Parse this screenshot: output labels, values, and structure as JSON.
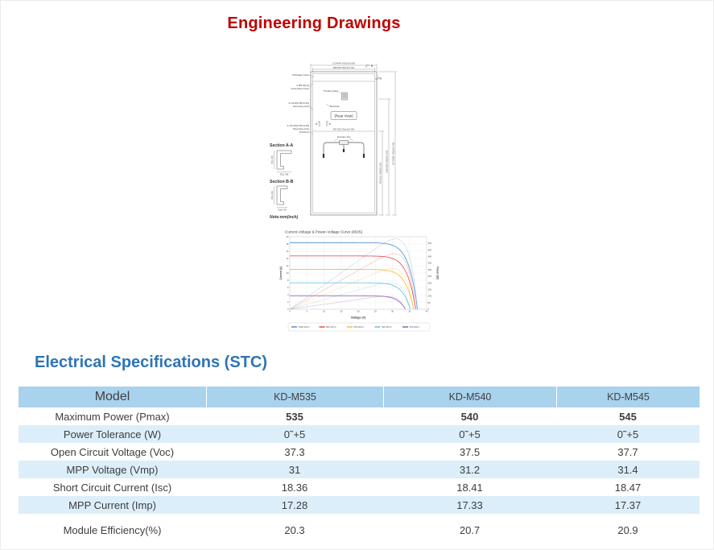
{
  "page": {
    "title": "Engineering Drawings",
    "accent_red": "#c00000",
    "accent_blue": "#2e74b5"
  },
  "drawing": {
    "labels": {
      "drainage": "Drainage holes",
      "grounding_1": "4-Φ5.0(0.2)",
      "grounding_2": "Grounding holes",
      "mounting_1": "4-14×9(0.55×0.35)",
      "mounting_2": "Mounting slots",
      "tracker_1": "4-15×10(0.59×0.39)",
      "tracker_2": "Mounting slots",
      "tracker_3": "(Tracker)",
      "product_label": "Product label",
      "barcode": "Barcode",
      "rear_view": "(Rear View)",
      "junction_box": "Junction box",
      "section_a": "Section A-A",
      "section_b": "Section B-B",
      "note": "Note:mm(inch)",
      "marker_a": "A",
      "marker_b": "B"
    },
    "dimensions": {
      "top_outer": "1134(44.65)±2(0.08)",
      "top_inner": "980(38.58)±1(0.04)",
      "width_mid": "997(39.25)±1(0.04)",
      "right_inner": "400(15.75)±5(0.20)",
      "right_mid": "1360(53.54)±5(0.20)",
      "right_outer": "2279(89.72)±2(0.08)",
      "section_a_h": "35(1.38)",
      "section_a_w": "35(1.38)",
      "section_b_h": "35(1.38)",
      "section_b_w": "20(0.79)"
    }
  },
  "chart_data": {
    "type": "line",
    "title": "Current-Voltage & Power-Voltage Curve (450S)",
    "xlabel": "Voltage (V)",
    "ylabel_left": "Current (A)",
    "ylabel_right": "Power (W)",
    "xlim": [
      0,
      40
    ],
    "xtick_step": 5,
    "ylim_left": [
      0,
      20
    ],
    "ytick_step_left": 2,
    "ylim_right": [
      0,
      550
    ],
    "ytick_step_right": 50,
    "grid": true,
    "legend_position": "bottom",
    "series": [
      {
        "name": "1000 W/m²",
        "color": "#5b9bd5",
        "isc": 18.36,
        "imp": 17.28,
        "vmp": 31.0,
        "voc": 37.3,
        "pmax": 535
      },
      {
        "name": "800 W/m²",
        "color": "#e05a5a",
        "isc": 14.7,
        "imp": 13.8,
        "vmp": 30.6,
        "voc": 36.8,
        "pmax": 428
      },
      {
        "name": "600 W/m²",
        "color": "#f5c142",
        "isc": 11.0,
        "imp": 10.35,
        "vmp": 30.1,
        "voc": 36.2,
        "pmax": 318
      },
      {
        "name": "400 W/m²",
        "color": "#6ec6e4",
        "isc": 7.3,
        "imp": 6.85,
        "vmp": 29.3,
        "voc": 35.2,
        "pmax": 206
      },
      {
        "name": "200 W/m²",
        "color": "#9b6bb3",
        "isc": 3.7,
        "imp": 3.45,
        "vmp": 28.1,
        "voc": 33.8,
        "pmax": 98
      }
    ]
  },
  "specs": {
    "heading": "Electrical Specifications (STC)",
    "table": {
      "header": [
        "Model",
        "KD-M535",
        "KD-M540",
        "KD-M545"
      ],
      "rows": [
        {
          "label": "Maximum Power (Pmax)",
          "values": [
            "535",
            "540",
            "545"
          ],
          "bold": true,
          "gap_before": false
        },
        {
          "label": "Power Tolerance (W)",
          "values": [
            "0˜+5",
            "0˜+5",
            "0˜+5"
          ],
          "bold": false,
          "gap_before": false
        },
        {
          "label": "Open Circuit Voltage (Voc)",
          "values": [
            "37.3",
            "37.5",
            "37.7"
          ],
          "bold": false,
          "gap_before": false
        },
        {
          "label": "MPP Voltage (Vmp)",
          "values": [
            "31",
            "31.2",
            "31.4"
          ],
          "bold": false,
          "gap_before": false
        },
        {
          "label": "Short Circuit Current (Isc)",
          "values": [
            "18.36",
            "18.41",
            "18.47"
          ],
          "bold": false,
          "gap_before": false
        },
        {
          "label": "MPP Current (Imp)",
          "values": [
            "17.28",
            "17.33",
            "17.37"
          ],
          "bold": false,
          "gap_before": false
        },
        {
          "label": "Module Efficiency(%)",
          "values": [
            "20.3",
            "20.7",
            "20.9"
          ],
          "bold": false,
          "gap_before": true
        }
      ]
    }
  }
}
